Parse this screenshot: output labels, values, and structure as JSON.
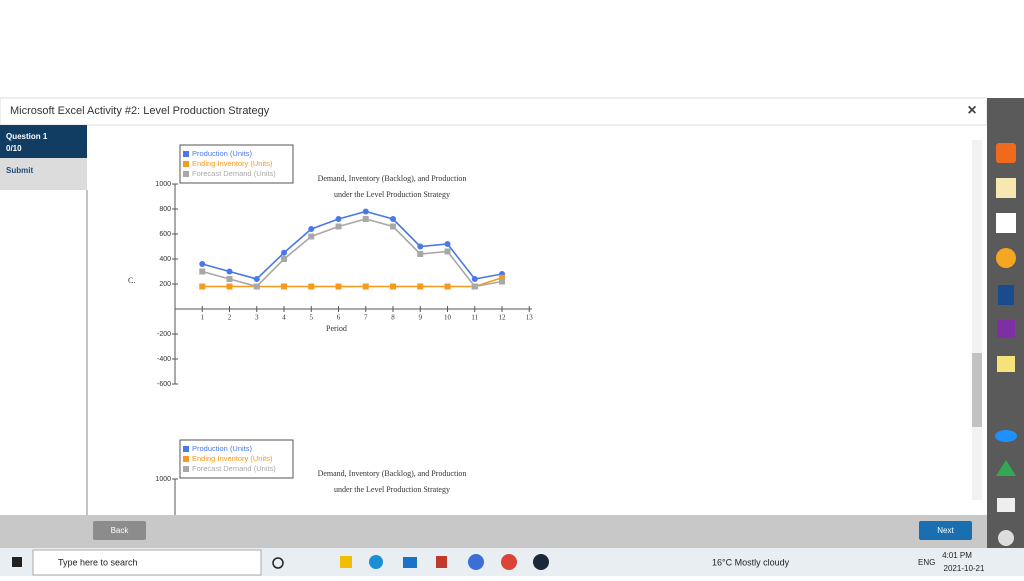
{
  "header": {
    "title": "Microsoft Excel Activity #2: Level Production Strategy",
    "close": "×"
  },
  "sidebar": {
    "question": "Question 1",
    "score": "0/10",
    "submit": "Submit"
  },
  "content": {
    "part_label": "C.",
    "charts": [
      {
        "type": "line",
        "title": [
          "Demand, Inventory (Backlog), and Production",
          "under the Level Production Strategy"
        ],
        "x_label": "Period",
        "x": [
          1,
          2,
          3,
          4,
          5,
          6,
          7,
          8,
          9,
          10,
          11,
          12
        ],
        "series": [
          {
            "name": "Production (Units)",
            "color": "#4a78e8",
            "marker": "circle",
            "values": [
              360,
              300,
              240,
              450,
              640,
              720,
              780,
              720,
              500,
              520,
              240,
              280
            ]
          },
          {
            "name": "Ending Inventory (Units)",
            "color": "#f59a1e",
            "marker": "square",
            "values": [
              180,
              180,
              180,
              180,
              180,
              180,
              180,
              180,
              180,
              180,
              180,
              250
            ]
          },
          {
            "name": "Forecast Demand (Units)",
            "color": "#a8a8a8",
            "marker": "square",
            "values": [
              300,
              240,
              180,
              400,
              580,
              660,
              720,
              660,
              440,
              460,
              180,
              220
            ]
          }
        ],
        "xlim": [
          0,
          13.1
        ],
        "xticks": [
          1,
          2,
          3,
          4,
          5,
          6,
          7,
          8,
          9,
          10,
          11,
          12,
          13
        ],
        "ylim": [
          -600,
          1000
        ],
        "yticks": [
          -600,
          -400,
          -200,
          200,
          400,
          600,
          800,
          1000
        ]
      },
      {
        "type": "line",
        "title": [
          "Demand, Inventory (Backlog), and Production",
          "under the Level Production Strategy"
        ],
        "series": [
          {
            "name": "Production (Units)",
            "color": "#4a78e8"
          },
          {
            "name": "Ending Inventory (Units)",
            "color": "#f59a1e"
          },
          {
            "name": "Forecast Demand (Units)",
            "color": "#a8a8a8"
          }
        ],
        "yticks": [
          1000
        ]
      }
    ]
  },
  "footer": {
    "back": "Back",
    "next": "Next"
  },
  "taskbar": {
    "search": "Type here to search",
    "weather": "16°C  Mostly cloudy",
    "language": "ENG",
    "time": "4:01 PM",
    "date": "2021-10-21"
  }
}
